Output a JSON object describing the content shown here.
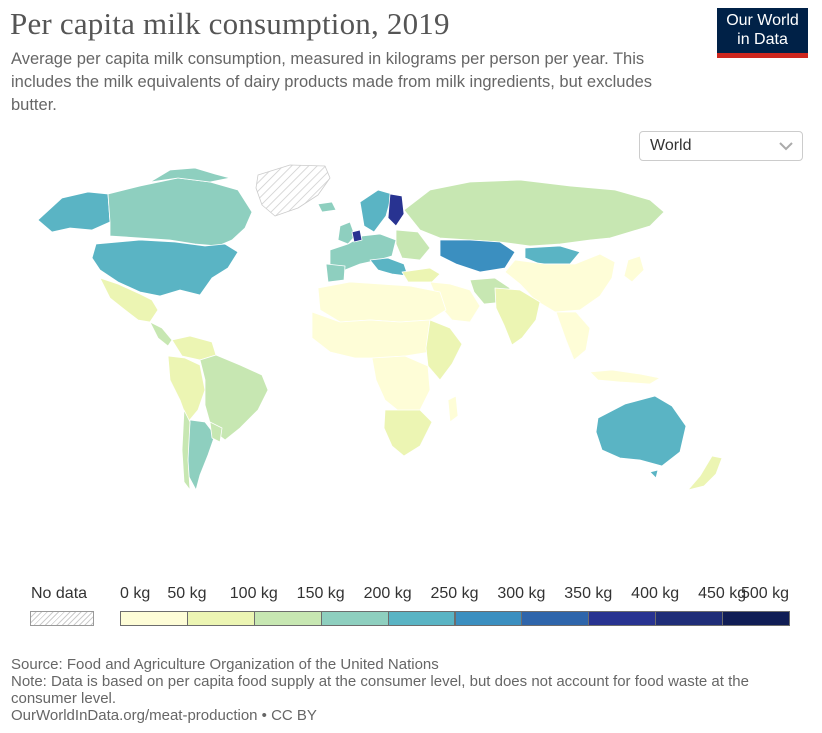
{
  "header": {
    "title": "Per capita milk consumption, 2019",
    "subtitle": "Average per capita milk consumption, measured in kilograms per person per year. This includes the milk equivalents of dairy products made from milk ingredients, but excludes butter."
  },
  "logo": {
    "line1": "Our World",
    "line2": "in Data"
  },
  "region_selector": {
    "value": "World"
  },
  "legend": {
    "no_data_label": "No data",
    "ticks": [
      "0 kg",
      "50 kg",
      "100 kg",
      "150 kg",
      "200 kg",
      "250 kg",
      "300 kg",
      "350 kg",
      "400 kg",
      "450 kg",
      "500 kg"
    ],
    "colors": [
      "#fefdd7",
      "#ecf5b3",
      "#c7e7b2",
      "#8ecfbf",
      "#5ab4c4",
      "#3b8fc0",
      "#2e65ab",
      "#283391",
      "#1f2d78",
      "#101d55"
    ]
  },
  "map_data": {
    "metric": "milk consumption (kg per person per year)",
    "regions": [
      {
        "name": "Canada",
        "bin": "150-200 kg"
      },
      {
        "name": "United States",
        "bin": "200-250 kg"
      },
      {
        "name": "Mexico",
        "bin": "50-100 kg"
      },
      {
        "name": "Brazil",
        "bin": "100-150 kg"
      },
      {
        "name": "Argentina",
        "bin": "150-200 kg"
      },
      {
        "name": "Europe",
        "bin": "150-300 kg"
      },
      {
        "name": "Finland",
        "bin": "400-450 kg"
      },
      {
        "name": "Russia",
        "bin": "100-150 kg"
      },
      {
        "name": "Kazakhstan",
        "bin": "250-300 kg"
      },
      {
        "name": "Mongolia",
        "bin": "200-250 kg"
      },
      {
        "name": "China",
        "bin": "0-50 kg"
      },
      {
        "name": "India",
        "bin": "50-100 kg"
      },
      {
        "name": "Africa",
        "bin": "0-100 kg"
      },
      {
        "name": "Australia",
        "bin": "200-250 kg"
      },
      {
        "name": "New Zealand",
        "bin": "50-100 kg"
      }
    ]
  },
  "footer": {
    "source": "Source: Food and Agriculture Organization of the United Nations",
    "note": "Note: Data is based on per capita food supply at the consumer level, but does not account for food waste at the consumer level.",
    "url": "OurWorldInData.org/meat-production • CC BY"
  }
}
